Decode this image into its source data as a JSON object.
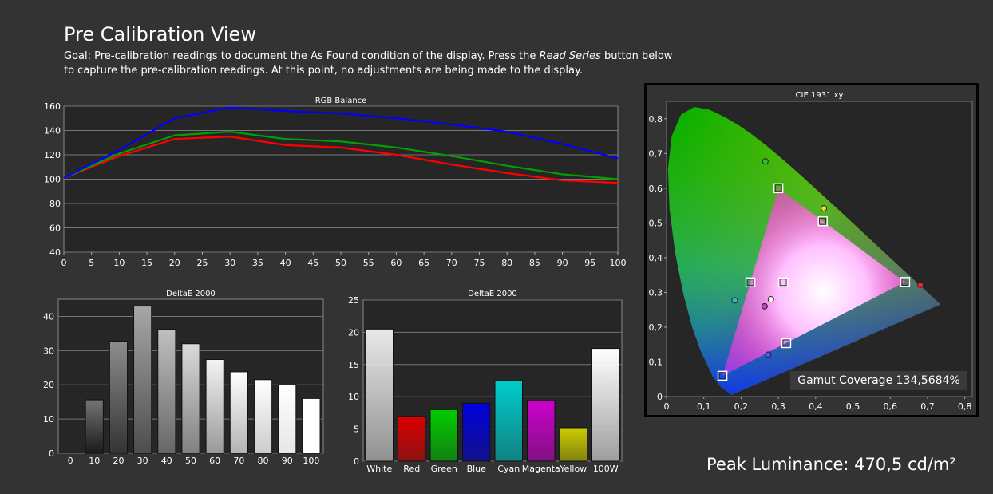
{
  "page": {
    "title": "Pre Calibration View",
    "goal_prefix": "Goal: Pre-calibration readings to document the As Found condition of the display. Press the ",
    "goal_button": "Read Series",
    "goal_suffix": " button below to capture the pre-calibration readings. At this point, no adjustments are being made to the display.",
    "gamut_coverage": "Gamut Coverage 134,5684%",
    "peak_luminance": "Peak Luminance: 470,5 cd/m²"
  },
  "chart_data": [
    {
      "type": "line",
      "title": "RGB Balance",
      "xlabel": "",
      "ylabel": "",
      "x": [
        0,
        10,
        20,
        30,
        40,
        50,
        60,
        70,
        80,
        90,
        100
      ],
      "xticks": [
        0,
        5,
        10,
        15,
        20,
        25,
        30,
        35,
        40,
        45,
        50,
        55,
        60,
        65,
        70,
        75,
        80,
        85,
        90,
        95,
        100
      ],
      "ylim": [
        40,
        160
      ],
      "yticks": [
        40,
        60,
        80,
        100,
        120,
        140,
        160
      ],
      "grid": true,
      "series": [
        {
          "color": "#ff0000",
          "values": [
            101,
            119,
            133,
            135,
            128,
            126,
            120,
            112,
            105,
            99,
            97
          ]
        },
        {
          "color": "#00a000",
          "values": [
            101,
            121,
            136,
            139,
            133,
            131,
            126,
            119,
            111,
            104,
            100
          ]
        },
        {
          "color": "#0000ff",
          "values": [
            101,
            124,
            150,
            159,
            156,
            154,
            150,
            145,
            139,
            129,
            117
          ]
        }
      ]
    },
    {
      "type": "bar",
      "title": "DeltaE 2000",
      "categories": [
        "0",
        "10",
        "20",
        "30",
        "40",
        "50",
        "60",
        "70",
        "80",
        "90",
        "100"
      ],
      "values": [
        0,
        15.6,
        32.7,
        43,
        36.2,
        32,
        27.4,
        23.8,
        21.5,
        20,
        16
      ],
      "ylim": [
        0,
        45
      ],
      "yticks": [
        0,
        10,
        20,
        30,
        40
      ],
      "grid": true
    },
    {
      "type": "bar",
      "title": "DeltaE 2000",
      "categories": [
        "White",
        "Red",
        "Green",
        "Blue",
        "Cyan",
        "Magenta",
        "Yellow",
        "100W"
      ],
      "values": [
        20.5,
        7,
        8,
        9,
        12.5,
        9.4,
        5.2,
        17.5
      ],
      "colors": [
        "#e8e8e8",
        "#dd0000",
        "#00cc00",
        "#0000dd",
        "#00cccc",
        "#cc00cc",
        "#cccc00",
        "#ffffff"
      ],
      "ylim": [
        0,
        25
      ],
      "yticks": [
        0,
        5,
        10,
        15,
        20,
        25
      ],
      "grid": true
    },
    {
      "type": "scatter",
      "title": "CIE 1931 xy",
      "xlim": [
        0,
        0.82
      ],
      "ylim": [
        0,
        0.85
      ],
      "xticks": [
        "0",
        "0,1",
        "0,2",
        "0,3",
        "0,4",
        "0,5",
        "0,6",
        "0,7",
        "0,8"
      ],
      "yticks": [
        "0",
        "0,1",
        "0,2",
        "0,3",
        "0,4",
        "0,5",
        "0,6",
        "0,7",
        "0,8"
      ],
      "targets": [
        {
          "x": 0.64,
          "y": 0.33
        },
        {
          "x": 0.3,
          "y": 0.6
        },
        {
          "x": 0.15,
          "y": 0.06
        },
        {
          "x": 0.225,
          "y": 0.329
        },
        {
          "x": 0.321,
          "y": 0.154
        },
        {
          "x": 0.419,
          "y": 0.505
        },
        {
          "x": 0.3127,
          "y": 0.329
        }
      ],
      "measured": [
        {
          "x": 0.681,
          "y": 0.322,
          "color": "#ff2020"
        },
        {
          "x": 0.265,
          "y": 0.677,
          "color": "#30c030"
        },
        {
          "x": 0.273,
          "y": 0.121,
          "color": "#5050ff"
        },
        {
          "x": 0.183,
          "y": 0.277,
          "color": "#30c0c0"
        },
        {
          "x": 0.263,
          "y": 0.26,
          "color": "#c040c0"
        },
        {
          "x": 0.422,
          "y": 0.542,
          "color": "#e0e020"
        },
        {
          "x": 0.28,
          "y": 0.28,
          "color": "#ffffff"
        }
      ]
    }
  ]
}
